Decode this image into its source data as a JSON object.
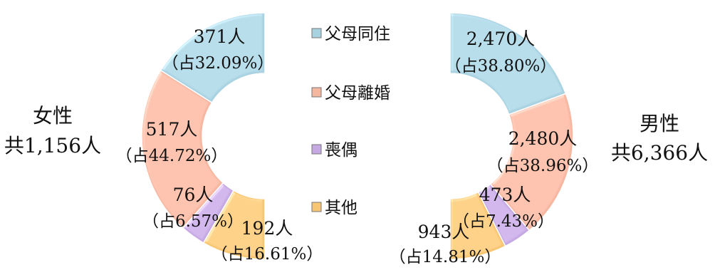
{
  "chart_data": {
    "type": "pie",
    "categories": [
      "父母同住",
      "父母離婚",
      "喪偶",
      "其他"
    ],
    "colors": [
      "#a9d2e1",
      "#f6b7a1",
      "#c6a9e3",
      "#f7c673"
    ],
    "groups": [
      {
        "name": "女性",
        "total_text": "共1,156人",
        "values": [
          371,
          517,
          76,
          192
        ],
        "value_labels": [
          "371人",
          "517人",
          "76人",
          "192人"
        ],
        "percent_labels": [
          "（占32.09%）",
          "（占44.72%）",
          "（占6.57%）",
          "（占16.61%）"
        ]
      },
      {
        "name": "男性",
        "total_text": "共6,366人",
        "values": [
          2470,
          2480,
          473,
          943
        ],
        "value_labels": [
          "2,470人",
          "2,480人",
          "473人",
          "943人"
        ],
        "percent_labels": [
          "（占38.80%）",
          "（占38.96%）",
          "（占7.43%）",
          "（占14.81%）"
        ]
      }
    ]
  }
}
